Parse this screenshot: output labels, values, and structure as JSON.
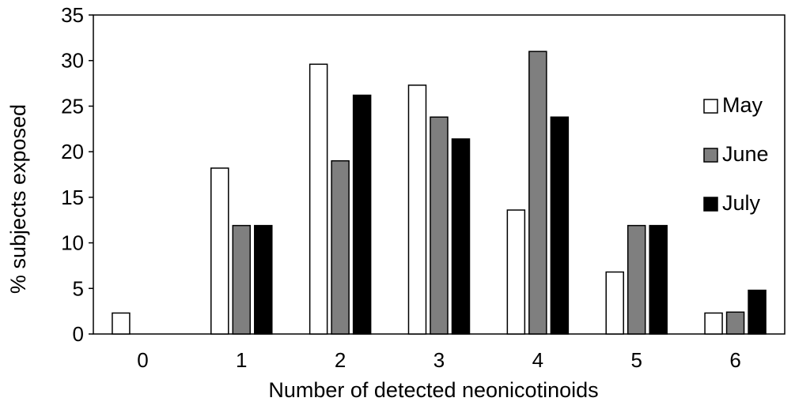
{
  "chart_data": {
    "type": "bar",
    "title": "",
    "xlabel": "Number of detected neonicotinoids",
    "ylabel": "% subjects exposed",
    "categories": [
      "0",
      "1",
      "2",
      "3",
      "4",
      "5",
      "6"
    ],
    "ylim": [
      0,
      35
    ],
    "yticks": [
      "0",
      "5",
      "10",
      "15",
      "20",
      "25",
      "30",
      "35"
    ],
    "grid": false,
    "legend_position": "right",
    "series": [
      {
        "name": "May",
        "color": "#ffffff",
        "values": [
          2.3,
          18.2,
          29.6,
          27.3,
          13.6,
          6.8,
          2.3
        ]
      },
      {
        "name": "June",
        "color": "#7f7f7f",
        "values": [
          0,
          11.9,
          19.0,
          23.8,
          31.0,
          11.9,
          2.4
        ]
      },
      {
        "name": "July",
        "color": "#000000",
        "values": [
          0,
          11.9,
          26.2,
          21.4,
          23.8,
          11.9,
          4.8
        ]
      }
    ]
  }
}
